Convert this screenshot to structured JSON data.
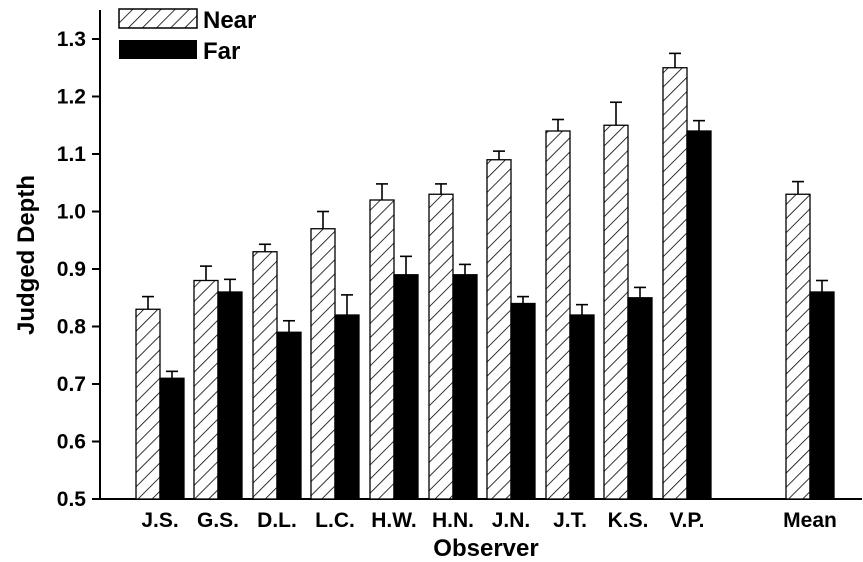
{
  "chart_data": {
    "type": "bar",
    "title": "",
    "xlabel": "Observer",
    "ylabel": "Judged Depth",
    "ylim": [
      0.5,
      1.3
    ],
    "yticks": [
      "0.5",
      "0.6",
      "0.7",
      "0.8",
      "0.9",
      "1.0",
      "1.1",
      "1.2",
      "1.3"
    ],
    "categories": [
      "J.S.",
      "G.S.",
      "D.L.",
      "L.C.",
      "H.W.",
      "H.N.",
      "J.N.",
      "J.T.",
      "K.S.",
      "V.P.",
      "Mean"
    ],
    "series": [
      {
        "name": "Near",
        "pattern": "hatched",
        "values": [
          0.83,
          0.88,
          0.93,
          0.97,
          1.02,
          1.03,
          1.09,
          1.14,
          1.15,
          1.25,
          1.03
        ],
        "errors": [
          0.022,
          0.025,
          0.013,
          0.03,
          0.028,
          0.018,
          0.015,
          0.02,
          0.04,
          0.025,
          0.022
        ]
      },
      {
        "name": "Far",
        "pattern": "solid",
        "color": "#000000",
        "values": [
          0.71,
          0.86,
          0.79,
          0.82,
          0.89,
          0.89,
          0.84,
          0.82,
          0.85,
          1.14,
          0.86
        ],
        "errors": [
          0.012,
          0.022,
          0.02,
          0.035,
          0.032,
          0.018,
          0.012,
          0.018,
          0.018,
          0.018,
          0.02
        ]
      }
    ],
    "error_bars": true,
    "grid": false,
    "legend": {
      "placement": "top-left"
    }
  }
}
